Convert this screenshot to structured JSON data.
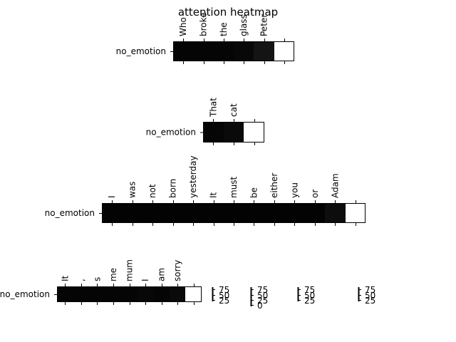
{
  "chart_data": {
    "type": "heatmap",
    "title": "attention heatmap",
    "panels": [
      {
        "row_label": "no_emotion",
        "tokens": [
          "Who",
          "broke",
          "the",
          "glass",
          "Peter"
        ],
        "values": [
          0.98,
          0.98,
          0.98,
          0.97,
          0.92,
          0.0
        ]
      },
      {
        "row_label": "no_emotion",
        "tokens": [
          "That",
          "cat"
        ],
        "values": [
          0.98,
          0.96,
          0.0
        ]
      },
      {
        "row_label": "no_emotion",
        "tokens": [
          "I",
          "was",
          "not",
          "born",
          "yesterday",
          "It",
          "must",
          "be",
          "either",
          "you",
          "or",
          "Adam"
        ],
        "values": [
          0.99,
          0.99,
          0.99,
          0.99,
          0.99,
          0.99,
          0.99,
          0.99,
          0.99,
          0.99,
          0.99,
          0.95,
          0.0
        ]
      },
      {
        "row_label": "no_emotion",
        "tokens": [
          "It",
          ",",
          "s",
          "me",
          "mum",
          "I",
          "am",
          "sorry"
        ],
        "values": [
          0.98,
          0.98,
          0.98,
          0.98,
          0.98,
          0.97,
          0.98,
          0.96,
          0.0
        ]
      }
    ],
    "colorbars": [
      {
        "ticks": [
          "75",
          "50",
          "25"
        ]
      },
      {
        "ticks": [
          "75",
          "50",
          "25",
          "0"
        ]
      },
      {
        "ticks": [
          "75",
          "50",
          "25"
        ]
      },
      {
        "ticks": [
          "75",
          "50",
          "25"
        ]
      }
    ]
  }
}
